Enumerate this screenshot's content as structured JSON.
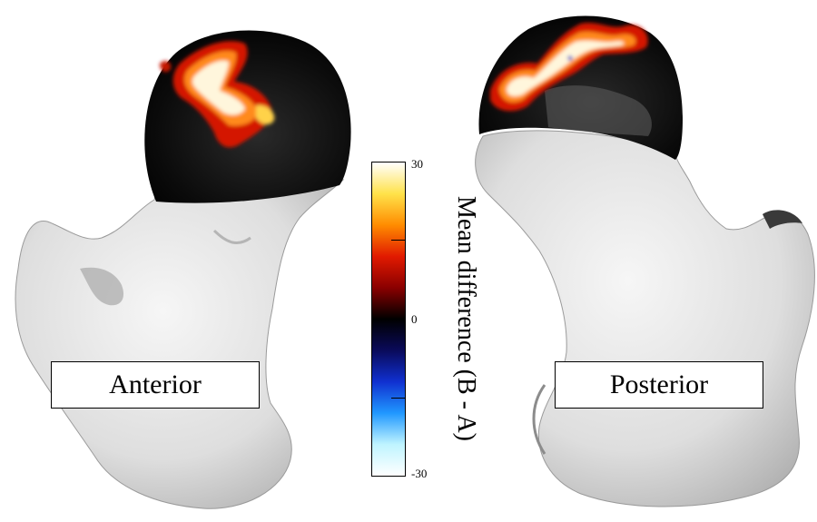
{
  "views": {
    "left_label": "Anterior",
    "right_label": "Posterior"
  },
  "colorbar": {
    "title": "Mean difference  (B - A)",
    "max_label": "30",
    "mid_label": "0",
    "min_label": "-30",
    "stops": [
      "#ffffff",
      "#ffe24a",
      "#ff8c00",
      "#e11a00",
      "#8a0000",
      "#000000",
      "#0a0a5a",
      "#1030d0",
      "#2098ff",
      "#bff4ff",
      "#ffffff"
    ]
  },
  "colors": {
    "bone": "#dcdcdc",
    "head": "#0b0b0b",
    "hot": "#ffffff",
    "warm": "#ff3300"
  }
}
